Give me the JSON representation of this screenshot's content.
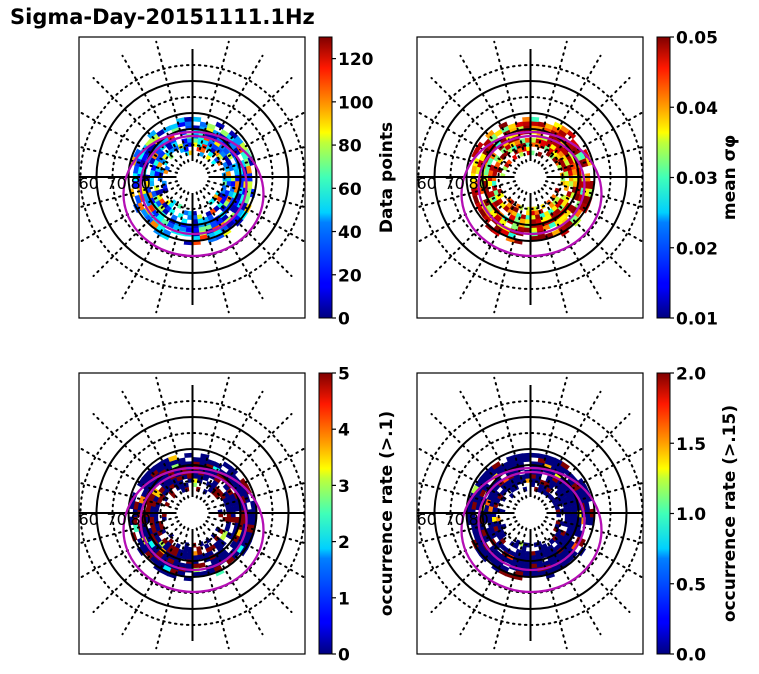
{
  "figure": {
    "title": "Sigma-Day-20151111.1Hz"
  },
  "colors": {
    "grid": "#000000",
    "oval": "#b40fb4",
    "colormap": "jet"
  },
  "chart_data": [
    {
      "type": "heatmap",
      "projection": "polar",
      "panel": "top-left",
      "title": "",
      "latitude_labels": [
        "60",
        "70",
        "80"
      ],
      "colorbar": {
        "label": "Data points",
        "range": [
          0,
          130
        ],
        "ticks": [
          0,
          20,
          40,
          60,
          80,
          100,
          120
        ],
        "tick_labels": [
          "0",
          "20",
          "40",
          "60",
          "80",
          "100",
          "120"
        ]
      },
      "dominant_values": "mostly 10-50 (blue/cyan) with scattered 60-110 cells",
      "data_ring_lat_range": [
        70,
        85
      ]
    },
    {
      "type": "heatmap",
      "projection": "polar",
      "panel": "top-right",
      "title": "",
      "latitude_labels": [
        "60",
        "70",
        "80"
      ],
      "colorbar": {
        "label": "mean σφ",
        "range": [
          0.01,
          0.05
        ],
        "ticks": [
          0.01,
          0.02,
          0.03,
          0.04,
          0.05
        ],
        "tick_labels": [
          "0.01",
          "0.02",
          "0.03",
          "0.04",
          "0.05"
        ]
      },
      "dominant_values": "mostly 0.04-0.05 (red/dark red) poleward edge, 0.025-0.04 inner ring",
      "data_ring_lat_range": [
        70,
        85
      ]
    },
    {
      "type": "heatmap",
      "projection": "polar",
      "panel": "bottom-left",
      "title": "",
      "latitude_labels": [
        "60",
        "70",
        "80"
      ],
      "colorbar": {
        "label": "occurrence rate (>.1)",
        "range": [
          0,
          5
        ],
        "ticks": [
          0,
          1,
          2,
          3,
          4,
          5
        ],
        "tick_labels": [
          "0",
          "1",
          "2",
          "3",
          "4",
          "5"
        ]
      },
      "dominant_values": "mostly 0 (dark blue) with patches at 5 (dark red) on dawn/noon side",
      "data_ring_lat_range": [
        70,
        85
      ]
    },
    {
      "type": "heatmap",
      "projection": "polar",
      "panel": "bottom-right",
      "title": "",
      "latitude_labels": [
        "60",
        "70",
        "80"
      ],
      "colorbar": {
        "label": "occurrence rate (>.15)",
        "range": [
          0.0,
          2.0
        ],
        "ticks": [
          0.0,
          0.5,
          1.0,
          1.5,
          2.0
        ],
        "tick_labels": [
          "0.0",
          "0.5",
          "1.0",
          "1.5",
          "2.0"
        ]
      },
      "dominant_values": "mostly 0.0 (dark blue) with patches at 2.0 (dark red) near noon and dawn",
      "data_ring_lat_range": [
        70,
        85
      ]
    }
  ]
}
